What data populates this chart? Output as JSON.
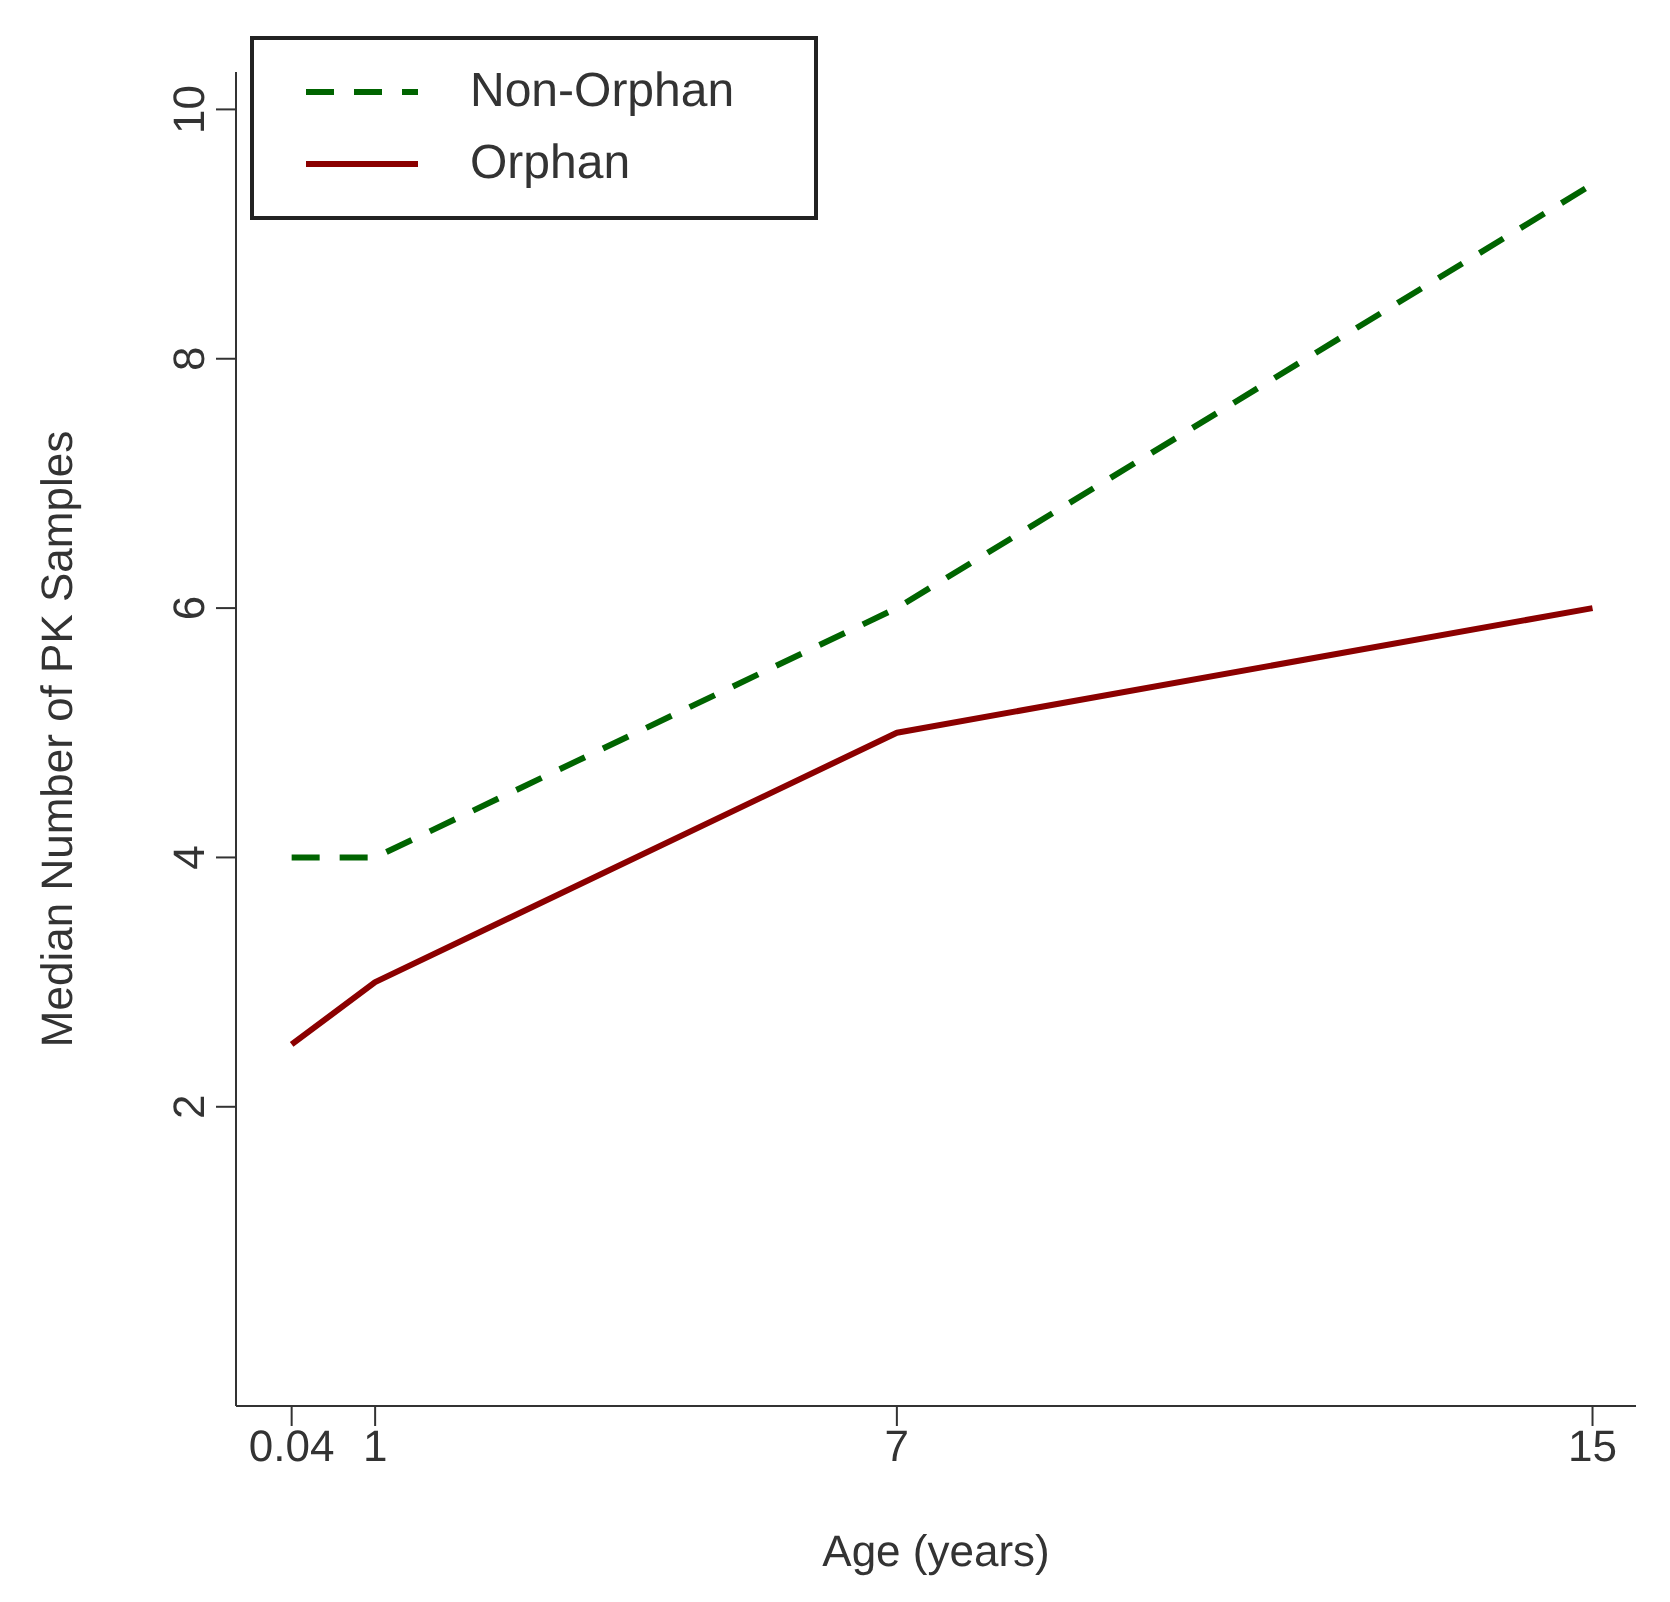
{
  "chart_data": {
    "type": "line",
    "xlabel": "Age (years)",
    "ylabel": "Median Number of PK Samples",
    "x": [
      0.04,
      1,
      7,
      15
    ],
    "series": [
      {
        "name": "Non-Orphan",
        "color": "#006400",
        "line_style": "dashed",
        "values": [
          4,
          4,
          6,
          9.4
        ]
      },
      {
        "name": "Orphan",
        "color": "#8b0000",
        "line_style": "solid",
        "values": [
          2.5,
          3,
          5,
          6
        ]
      }
    ],
    "xlim": [
      -0.6,
      15.5
    ],
    "xticks": [
      0.04,
      1,
      7,
      15
    ],
    "ylim": [
      -0.4,
      10.3
    ],
    "yticks": [
      2,
      4,
      6,
      8,
      10
    ],
    "grid": false,
    "legend": "top left",
    "marker": "none"
  }
}
